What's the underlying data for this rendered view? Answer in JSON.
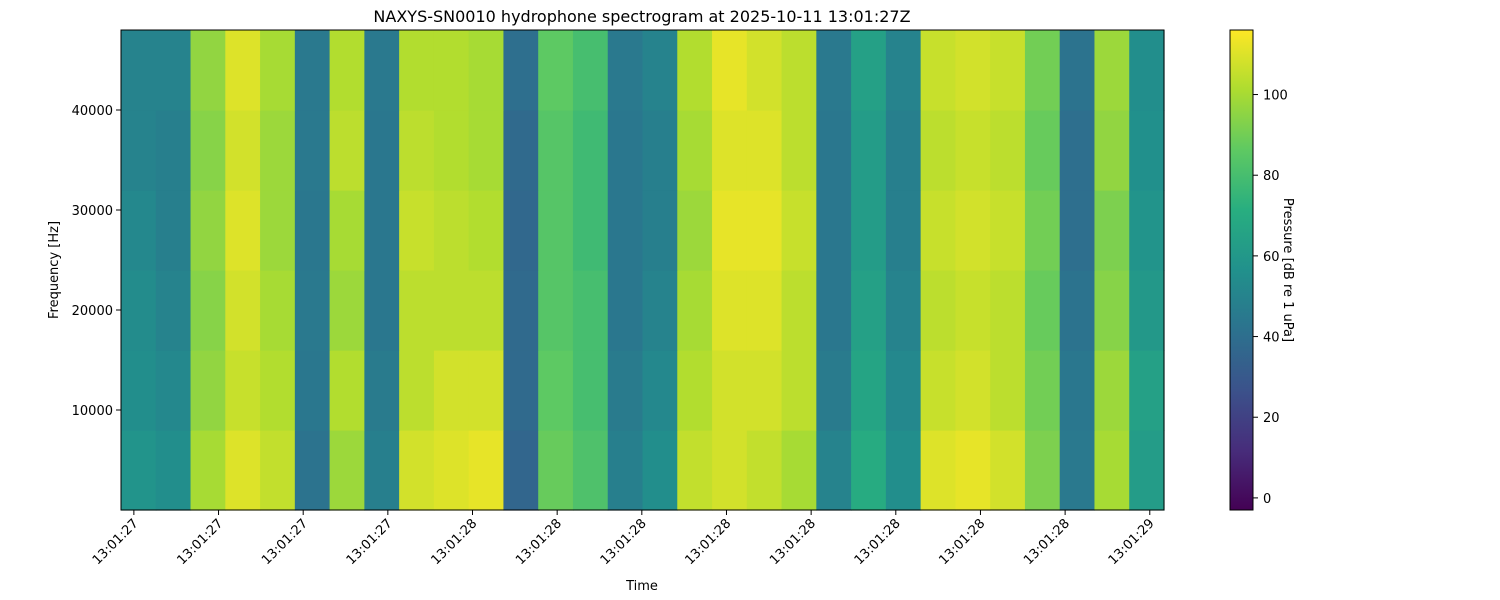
{
  "chart_data": {
    "type": "heatmap",
    "title": "NAXYS-SN0010 hydrophone spectrogram at 2025-10-11 13:01:27Z",
    "xlabel": "Time",
    "ylabel": "Frequency [Hz]",
    "colorbar_label": "Pressure [dB re 1 uPa]",
    "colormap": "viridis",
    "xlim": [
      27.481,
      29.021
    ],
    "ylim": [
      0,
      48000
    ],
    "clim": [
      -3,
      116
    ],
    "xticks": [
      {
        "value": 27.5,
        "label": "13:01:27"
      },
      {
        "value": 27.625,
        "label": "13:01:27"
      },
      {
        "value": 27.75,
        "label": "13:01:27"
      },
      {
        "value": 27.875,
        "label": "13:01:27"
      },
      {
        "value": 28.0,
        "label": "13:01:28"
      },
      {
        "value": 28.125,
        "label": "13:01:28"
      },
      {
        "value": 28.25,
        "label": "13:01:28"
      },
      {
        "value": 28.375,
        "label": "13:01:28"
      },
      {
        "value": 28.5,
        "label": "13:01:28"
      },
      {
        "value": 28.625,
        "label": "13:01:28"
      },
      {
        "value": 28.75,
        "label": "13:01:28"
      },
      {
        "value": 28.875,
        "label": "13:01:28"
      },
      {
        "value": 29.0,
        "label": "13:01:29"
      }
    ],
    "yticks": [
      10000,
      20000,
      30000,
      40000
    ],
    "cticks": [
      0,
      20,
      40,
      60,
      80,
      100
    ],
    "z": [
      [
        58,
        55,
        100,
        110,
        105,
        42,
        98,
        48,
        108,
        110,
        112,
        36,
        88,
        82,
        48,
        55,
        105,
        108,
        105,
        100,
        50,
        70,
        55,
        110,
        112,
        108,
        92,
        45,
        100,
        62
      ],
      [
        55,
        52,
        96,
        106,
        102,
        44,
        102,
        46,
        104,
        108,
        108,
        38,
        86,
        80,
        46,
        52,
        102,
        108,
        108,
        104,
        46,
        66,
        52,
        106,
        108,
        104,
        90,
        44,
        98,
        64
      ],
      [
        54,
        50,
        94,
        108,
        100,
        45,
        98,
        44,
        104,
        104,
        104,
        38,
        84,
        80,
        44,
        50,
        100,
        110,
        110,
        104,
        44,
        64,
        50,
        104,
        106,
        104,
        88,
        42,
        94,
        60
      ],
      [
        52,
        48,
        96,
        110,
        98,
        44,
        100,
        44,
        106,
        104,
        102,
        37,
        84,
        78,
        44,
        48,
        98,
        112,
        112,
        106,
        44,
        62,
        48,
        106,
        108,
        106,
        90,
        40,
        92,
        58
      ],
      [
        50,
        48,
        94,
        108,
        98,
        45,
        104,
        44,
        104,
        102,
        100,
        38,
        84,
        78,
        44,
        48,
        100,
        110,
        110,
        104,
        44,
        62,
        48,
        104,
        106,
        104,
        88,
        40,
        96,
        56
      ],
      [
        50,
        50,
        96,
        110,
        100,
        45,
        102,
        45,
        102,
        102,
        100,
        40,
        86,
        80,
        45,
        50,
        102,
        112,
        108,
        104,
        45,
        64,
        50,
        106,
        108,
        106,
        90,
        42,
        98,
        55
      ]
    ]
  }
}
